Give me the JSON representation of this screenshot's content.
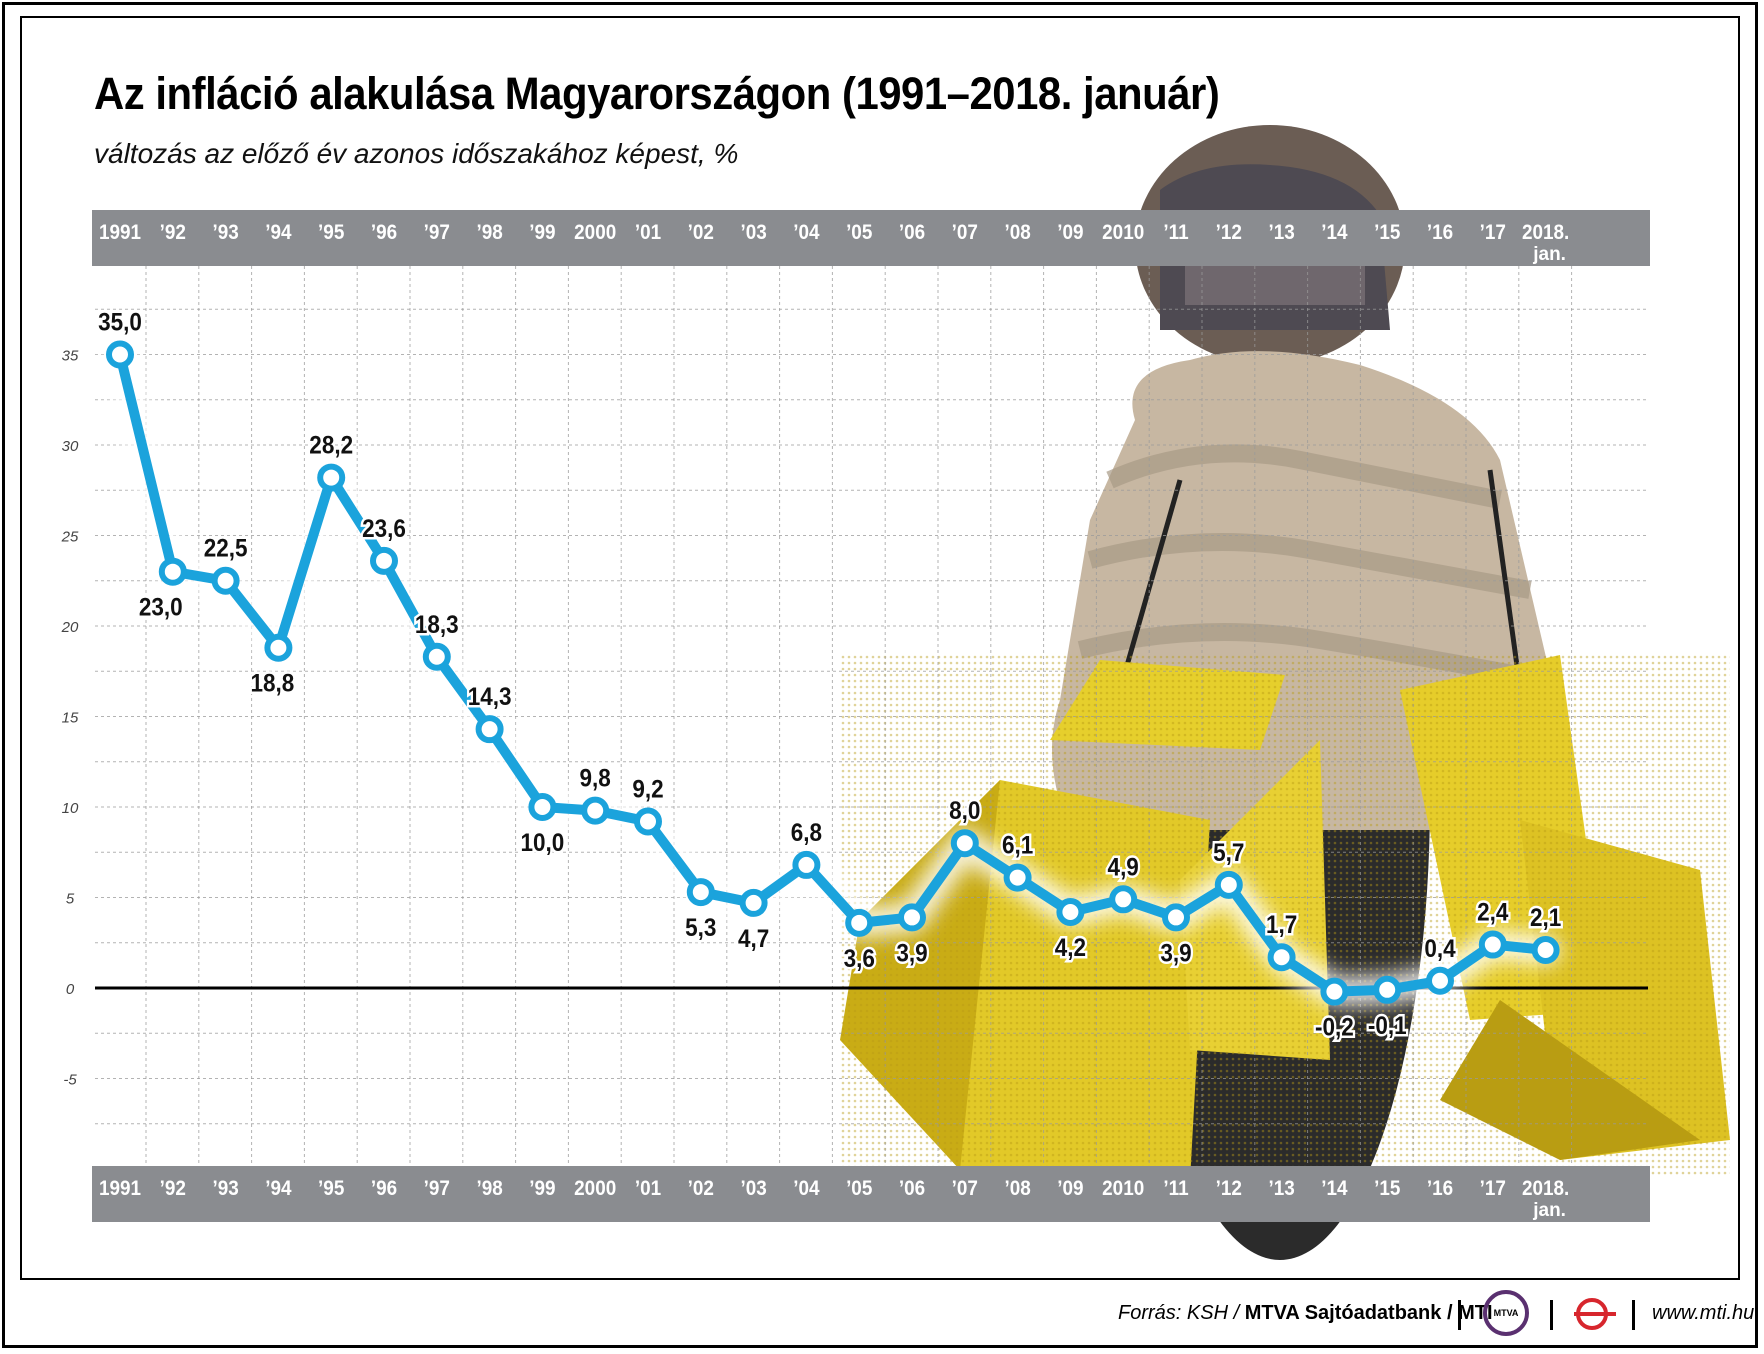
{
  "title": "Az infláció alakulása Magyarországon (1991–2018. január)",
  "subtitle": "változás az előző év azonos időszakához képest, %",
  "chart_data": {
    "type": "line",
    "title": "Az infláció alakulása Magyarországon (1991–2018. január)",
    "subtitle": "változás az előző év azonos időszakához képest, %",
    "categories": [
      "1991",
      "’92",
      "’93",
      "’94",
      "’95",
      "’96",
      "’97",
      "’98",
      "’99",
      "2000",
      "’01",
      "’02",
      "’03",
      "’04",
      "’05",
      "’06",
      "’07",
      "’08",
      "’09",
      "2010",
      "’11",
      "’12",
      "’13",
      "’14",
      "’15",
      "’16",
      "’17",
      "2018."
    ],
    "last_category_sub": "jan.",
    "values": [
      35.0,
      23.0,
      22.5,
      18.8,
      28.2,
      23.6,
      18.3,
      14.3,
      10.0,
      9.8,
      9.2,
      5.3,
      4.7,
      6.8,
      3.6,
      3.9,
      8.0,
      6.1,
      4.2,
      4.9,
      3.9,
      5.7,
      1.7,
      -0.2,
      -0.1,
      0.4,
      2.4,
      2.1
    ],
    "value_labels": [
      "35,0",
      "23,0",
      "22,5",
      "18,8",
      "28,2",
      "23,6",
      "18,3",
      "14,3",
      "10,0",
      "9,8",
      "9,2",
      "5,3",
      "4,7",
      "6,8",
      "3,6",
      "3,9",
      "8,0",
      "6,1",
      "4,2",
      "4,9",
      "3,9",
      "5,7",
      "1,7",
      "-0,2",
      "-0,1",
      "0,4",
      "2,4",
      "2,1"
    ],
    "label_below": [
      false,
      true,
      false,
      true,
      false,
      false,
      false,
      false,
      true,
      false,
      false,
      true,
      true,
      false,
      true,
      true,
      false,
      false,
      true,
      false,
      true,
      false,
      false,
      true,
      true,
      false,
      false,
      false
    ],
    "yticks": [
      35,
      30,
      25,
      20,
      15,
      10,
      5,
      0,
      -5
    ],
    "ytick_labels": [
      "35",
      "30",
      "25",
      "20",
      "15",
      "10",
      "5",
      "0",
      "-5"
    ],
    "ylim": [
      -10,
      40
    ],
    "grid": true,
    "line_color": "#1ba3dc",
    "band_color": "#8a8c90",
    "zero_line_color": "#000000"
  },
  "footer": {
    "source_prefix": "Forrás: KSH / ",
    "source_bold": "MTVA Sajtóadatbank / MTI",
    "logo_text": "MTVA",
    "website": "www.mti.hu"
  }
}
